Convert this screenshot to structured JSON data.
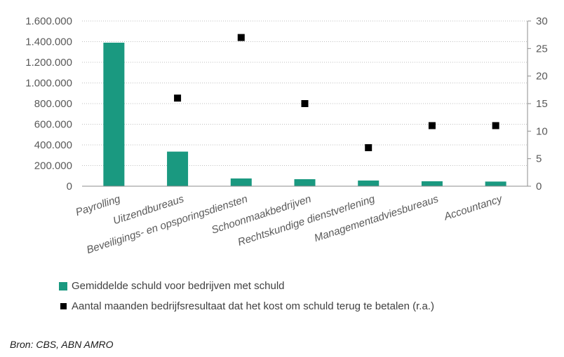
{
  "chart_data": {
    "type": "bar",
    "categories": [
      "Payrolling",
      "Uitzendbureaus",
      "Beveiligings- en opsporingsdiensten",
      "Schoonmaakbedrijven",
      "Rechtskundige dienstverlening",
      "Managementadviesbureaus",
      "Accountancy"
    ],
    "series": [
      {
        "name": "Gemiddelde schuld voor bedrijven met schuld",
        "type": "bar",
        "axis": "left",
        "color": "#1a9980",
        "values": [
          1390000,
          335000,
          75000,
          68000,
          55000,
          48000,
          45000
        ]
      },
      {
        "name": "Aantal maanden bedrijfsresultaat dat het kost om schuld terug te betalen (r.a.)",
        "type": "scatter",
        "axis": "right",
        "color": "#000000",
        "values": [
          null,
          16,
          27,
          15,
          7,
          11,
          11
        ]
      }
    ],
    "left_axis": {
      "ylim": [
        0,
        1600000
      ],
      "ticks": [
        "0",
        "200.000",
        "400.000",
        "600.000",
        "800.000",
        "1.000.000",
        "1.200.000",
        "1.400.000",
        "1.600.000"
      ]
    },
    "right_axis": {
      "ylim": [
        0,
        30
      ],
      "ticks": [
        "0",
        "5",
        "10",
        "15",
        "20",
        "25",
        "30"
      ]
    },
    "grid": "horizontal dotted",
    "legend_position": "bottom-left"
  },
  "source": "Bron: CBS, ABN AMRO"
}
